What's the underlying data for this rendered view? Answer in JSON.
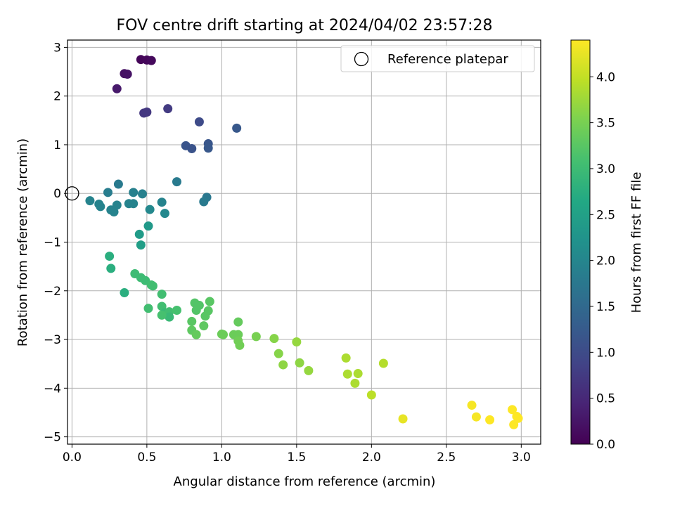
{
  "chart_data": {
    "type": "scatter",
    "title": "FOV centre drift starting at 2024/04/02 23:57:28",
    "xlabel": "Angular distance from reference (arcmin)",
    "ylabel": "Rotation from reference (arcmin)",
    "xlim": [
      -0.03,
      3.13
    ],
    "ylim": [
      -5.15,
      3.15
    ],
    "xticks": [
      0.0,
      0.5,
      1.0,
      1.5,
      2.0,
      2.5,
      3.0
    ],
    "xtick_labels": [
      "0.0",
      "0.5",
      "1.0",
      "1.5",
      "2.0",
      "2.5",
      "3.0"
    ],
    "yticks": [
      -5,
      -4,
      -3,
      -2,
      -1,
      0,
      1,
      2,
      3
    ],
    "ytick_labels": [
      "−5",
      "−4",
      "−3",
      "−2",
      "−1",
      "0",
      "1",
      "2",
      "3"
    ],
    "grid": true,
    "legend": {
      "position": "top-right",
      "entries": [
        {
          "label": "Reference platepar",
          "marker": "open-circle"
        }
      ]
    },
    "reference_point": {
      "x": 0.0,
      "y": 0.0
    },
    "colorbar": {
      "label": "Hours from first FF file",
      "range": [
        0.0,
        4.4
      ],
      "ticks": [
        0.0,
        0.5,
        1.0,
        1.5,
        2.0,
        2.5,
        3.0,
        3.5,
        4.0
      ],
      "tick_labels": [
        "0.0",
        "0.5",
        "1.0",
        "1.5",
        "2.0",
        "2.5",
        "3.0",
        "3.5",
        "4.0"
      ],
      "colormap": "viridis"
    },
    "series": [
      {
        "points": [
          {
            "x": 0.46,
            "y": 2.75,
            "c": 0.05
          },
          {
            "x": 0.5,
            "y": 2.74,
            "c": 0.08
          },
          {
            "x": 0.53,
            "y": 2.73,
            "c": 0.1
          },
          {
            "x": 0.35,
            "y": 2.46,
            "c": 0.2
          },
          {
            "x": 0.37,
            "y": 2.45,
            "c": 0.22
          },
          {
            "x": 0.3,
            "y": 2.15,
            "c": 0.3
          },
          {
            "x": 0.48,
            "y": 1.65,
            "c": 0.7
          },
          {
            "x": 0.5,
            "y": 1.67,
            "c": 0.72
          },
          {
            "x": 0.64,
            "y": 1.74,
            "c": 0.75
          },
          {
            "x": 0.85,
            "y": 1.47,
            "c": 1.0
          },
          {
            "x": 1.1,
            "y": 1.34,
            "c": 1.2
          },
          {
            "x": 0.76,
            "y": 0.98,
            "c": 1.15
          },
          {
            "x": 0.8,
            "y": 0.92,
            "c": 1.12
          },
          {
            "x": 0.91,
            "y": 1.02,
            "c": 1.18
          },
          {
            "x": 0.91,
            "y": 0.93,
            "c": 1.2
          },
          {
            "x": 0.7,
            "y": 0.24,
            "c": 1.8
          },
          {
            "x": 0.31,
            "y": 0.19,
            "c": 1.8
          },
          {
            "x": 0.24,
            "y": 0.02,
            "c": 1.85
          },
          {
            "x": 0.41,
            "y": 0.02,
            "c": 1.9
          },
          {
            "x": 0.47,
            "y": -0.01,
            "c": 1.9
          },
          {
            "x": 0.9,
            "y": -0.08,
            "c": 1.75
          },
          {
            "x": 0.88,
            "y": -0.17,
            "c": 1.8
          },
          {
            "x": 0.12,
            "y": -0.15,
            "c": 1.95
          },
          {
            "x": 0.18,
            "y": -0.22,
            "c": 1.95
          },
          {
            "x": 0.19,
            "y": -0.27,
            "c": 1.95
          },
          {
            "x": 0.3,
            "y": -0.24,
            "c": 1.95
          },
          {
            "x": 0.38,
            "y": -0.21,
            "c": 1.95
          },
          {
            "x": 0.41,
            "y": -0.21,
            "c": 1.95
          },
          {
            "x": 0.6,
            "y": -0.18,
            "c": 1.95
          },
          {
            "x": 0.26,
            "y": -0.34,
            "c": 1.95
          },
          {
            "x": 0.28,
            "y": -0.38,
            "c": 1.95
          },
          {
            "x": 0.52,
            "y": -0.33,
            "c": 2.05
          },
          {
            "x": 0.62,
            "y": -0.41,
            "c": 2.05
          },
          {
            "x": 0.51,
            "y": -0.67,
            "c": 2.35
          },
          {
            "x": 0.45,
            "y": -0.84,
            "c": 2.4
          },
          {
            "x": 0.46,
            "y": -1.06,
            "c": 2.45
          },
          {
            "x": 0.25,
            "y": -1.29,
            "c": 2.75
          },
          {
            "x": 0.26,
            "y": -1.54,
            "c": 2.75
          },
          {
            "x": 0.42,
            "y": -1.65,
            "c": 3.0
          },
          {
            "x": 0.46,
            "y": -1.73,
            "c": 3.0
          },
          {
            "x": 0.49,
            "y": -1.79,
            "c": 3.0
          },
          {
            "x": 0.53,
            "y": -1.88,
            "c": 3.05
          },
          {
            "x": 0.54,
            "y": -1.9,
            "c": 3.05
          },
          {
            "x": 0.35,
            "y": -2.04,
            "c": 2.75
          },
          {
            "x": 0.6,
            "y": -2.07,
            "c": 3.05
          },
          {
            "x": 0.51,
            "y": -2.36,
            "c": 3.05
          },
          {
            "x": 0.6,
            "y": -2.32,
            "c": 3.05
          },
          {
            "x": 0.62,
            "y": -2.45,
            "c": 2.95
          },
          {
            "x": 0.65,
            "y": -2.43,
            "c": 3.05
          },
          {
            "x": 0.65,
            "y": -2.54,
            "c": 2.95
          },
          {
            "x": 0.6,
            "y": -2.5,
            "c": 3.1
          },
          {
            "x": 0.7,
            "y": -2.4,
            "c": 3.1
          },
          {
            "x": 0.82,
            "y": -2.25,
            "c": 3.2
          },
          {
            "x": 0.85,
            "y": -2.3,
            "c": 3.2
          },
          {
            "x": 0.83,
            "y": -2.4,
            "c": 3.2
          },
          {
            "x": 0.92,
            "y": -2.22,
            "c": 3.25
          },
          {
            "x": 0.91,
            "y": -2.41,
            "c": 3.25
          },
          {
            "x": 0.89,
            "y": -2.52,
            "c": 3.25
          },
          {
            "x": 0.8,
            "y": -2.63,
            "c": 3.25
          },
          {
            "x": 0.88,
            "y": -2.72,
            "c": 3.3
          },
          {
            "x": 0.8,
            "y": -2.81,
            "c": 3.3
          },
          {
            "x": 0.83,
            "y": -2.9,
            "c": 3.35
          },
          {
            "x": 1.0,
            "y": -2.89,
            "c": 3.4
          },
          {
            "x": 1.01,
            "y": -2.9,
            "c": 3.4
          },
          {
            "x": 1.08,
            "y": -2.9,
            "c": 3.4
          },
          {
            "x": 1.11,
            "y": -2.9,
            "c": 3.4
          },
          {
            "x": 1.11,
            "y": -2.64,
            "c": 3.35
          },
          {
            "x": 1.11,
            "y": -3.03,
            "c": 3.45
          },
          {
            "x": 1.12,
            "y": -3.12,
            "c": 3.45
          },
          {
            "x": 1.23,
            "y": -2.94,
            "c": 3.5
          },
          {
            "x": 1.35,
            "y": -2.98,
            "c": 3.6
          },
          {
            "x": 1.38,
            "y": -3.29,
            "c": 3.6
          },
          {
            "x": 1.41,
            "y": -3.52,
            "c": 3.65
          },
          {
            "x": 1.5,
            "y": -3.05,
            "c": 3.7
          },
          {
            "x": 1.52,
            "y": -3.48,
            "c": 3.65
          },
          {
            "x": 1.58,
            "y": -3.64,
            "c": 3.7
          },
          {
            "x": 1.83,
            "y": -3.38,
            "c": 3.85
          },
          {
            "x": 1.84,
            "y": -3.71,
            "c": 3.85
          },
          {
            "x": 1.89,
            "y": -3.9,
            "c": 3.85
          },
          {
            "x": 1.91,
            "y": -3.7,
            "c": 3.85
          },
          {
            "x": 2.08,
            "y": -3.49,
            "c": 3.9
          },
          {
            "x": 2.0,
            "y": -4.14,
            "c": 3.95
          },
          {
            "x": 2.21,
            "y": -4.63,
            "c": 4.25
          },
          {
            "x": 2.67,
            "y": -4.35,
            "c": 4.35
          },
          {
            "x": 2.7,
            "y": -4.59,
            "c": 4.35
          },
          {
            "x": 2.79,
            "y": -4.65,
            "c": 4.4
          },
          {
            "x": 2.94,
            "y": -4.44,
            "c": 4.4
          },
          {
            "x": 2.95,
            "y": -4.75,
            "c": 4.4
          },
          {
            "x": 2.97,
            "y": -4.58,
            "c": 4.4
          },
          {
            "x": 2.98,
            "y": -4.62,
            "c": 4.4
          }
        ]
      }
    ]
  }
}
